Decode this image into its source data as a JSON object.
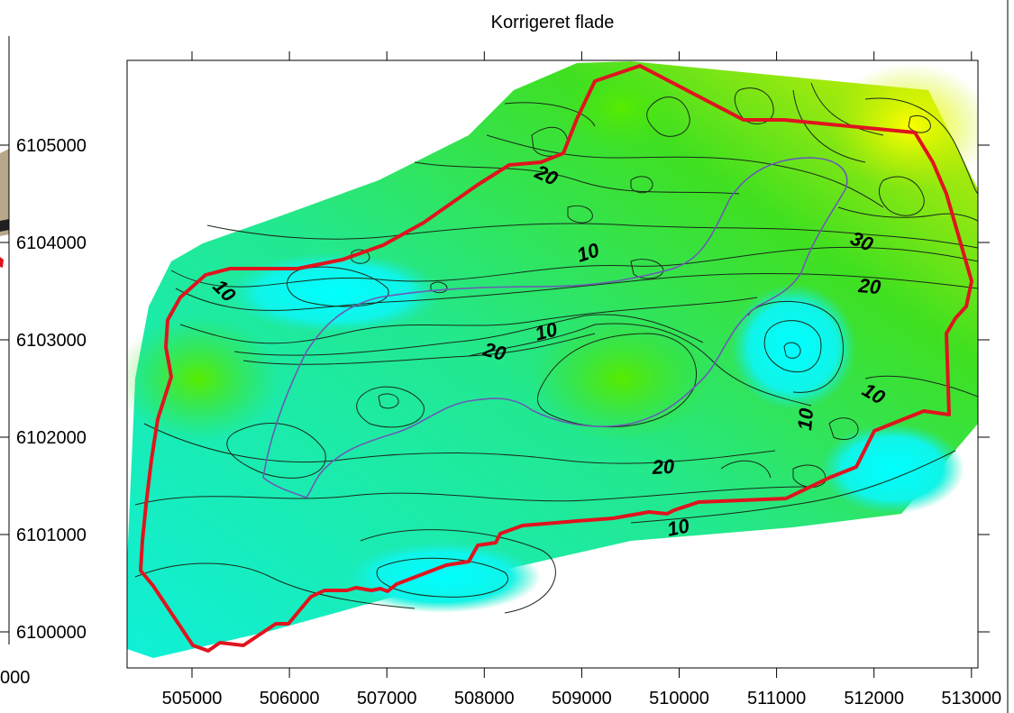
{
  "title": "Korrigeret flade",
  "left_panel": {
    "y_ticks": [
      "6105000",
      "6104000",
      "6103000",
      "6102000",
      "6101000",
      "6100000"
    ],
    "x_tick_partial": "000"
  },
  "main_map": {
    "x_ticks": [
      "505000",
      "506000",
      "507000",
      "508000",
      "509000",
      "510000",
      "511000",
      "512000",
      "513000"
    ],
    "contour_labels": [
      "20",
      "10",
      "30",
      "20",
      "10",
      "10",
      "20",
      "10",
      "10",
      "20",
      "10"
    ],
    "colors": {
      "boundary": "#e0141e",
      "river": "#6a5bb5",
      "contour": "#1a2a1a",
      "high": "#fff000",
      "mid": "#38e000",
      "low": "#00f0f0"
    }
  }
}
